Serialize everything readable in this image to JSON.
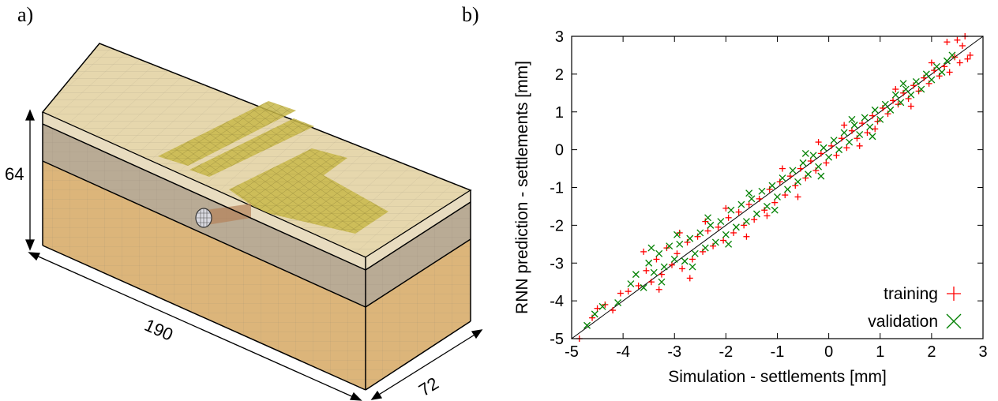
{
  "panel_labels": {
    "a": "a)",
    "b": "b)"
  },
  "model": {
    "dimensions": {
      "height": "64",
      "length": "190",
      "width": "72"
    },
    "colors": {
      "top_layer": "#e8dcc0",
      "middle_layer": "#b9ab95",
      "bottom_layer": "#dcb57a",
      "top_face": "#e6d7ad",
      "structure": "#c8b94a",
      "mesh_line": "#8f8573",
      "tunnel": "#6a6a7a"
    }
  },
  "chart_data": {
    "type": "scatter",
    "xlabel": "Simulation - settlements [mm]",
    "ylabel": "RNN prediction - settlements [mm]",
    "xlim": [
      -5,
      3
    ],
    "ylim": [
      -5,
      3
    ],
    "xticks": [
      "-5",
      "-4",
      "-3",
      "-2",
      "-1",
      "0",
      "1",
      "2",
      "3"
    ],
    "yticks": [
      "-5",
      "-4",
      "-3",
      "-2",
      "-1",
      "0",
      "1",
      "2",
      "3"
    ],
    "grid": false,
    "legend_position": "bottom-right",
    "reference_line": {
      "from": [
        -5,
        -5
      ],
      "to": [
        3,
        3
      ]
    },
    "series": [
      {
        "name": "training",
        "marker": "plus",
        "color": "#ff0000",
        "points": [
          [
            -4.85,
            -5.0
          ],
          [
            -4.6,
            -4.45
          ],
          [
            -4.5,
            -4.2
          ],
          [
            -4.35,
            -4.1
          ],
          [
            -4.2,
            -4.25
          ],
          [
            -4.05,
            -3.8
          ],
          [
            -3.9,
            -3.75
          ],
          [
            -3.7,
            -3.6
          ],
          [
            -3.55,
            -3.2
          ],
          [
            -3.45,
            -3.5
          ],
          [
            -3.35,
            -2.9
          ],
          [
            -3.25,
            -3.3
          ],
          [
            -3.15,
            -2.6
          ],
          [
            -3.05,
            -3.05
          ],
          [
            -2.95,
            -2.75
          ],
          [
            -2.85,
            -3.15
          ],
          [
            -2.75,
            -2.45
          ],
          [
            -2.65,
            -2.9
          ],
          [
            -2.55,
            -2.3
          ],
          [
            -2.45,
            -2.7
          ],
          [
            -2.35,
            -2.15
          ],
          [
            -2.25,
            -2.55
          ],
          [
            -2.15,
            -2.05
          ],
          [
            -2.05,
            -2.4
          ],
          [
            -1.95,
            -1.8
          ],
          [
            -1.85,
            -2.2
          ],
          [
            -1.75,
            -1.65
          ],
          [
            -1.65,
            -2.0
          ],
          [
            -1.55,
            -1.45
          ],
          [
            -1.45,
            -1.85
          ],
          [
            -1.35,
            -1.3
          ],
          [
            -1.25,
            -1.6
          ],
          [
            -1.15,
            -1.05
          ],
          [
            -1.05,
            -1.4
          ],
          [
            -0.95,
            -0.85
          ],
          [
            -0.85,
            -1.2
          ],
          [
            -0.75,
            -0.7
          ],
          [
            -0.65,
            -0.95
          ],
          [
            -0.55,
            -0.5
          ],
          [
            -0.45,
            -0.75
          ],
          [
            -0.35,
            -0.3
          ],
          [
            -0.25,
            -0.55
          ],
          [
            -0.15,
            -0.1
          ],
          [
            -0.05,
            -0.35
          ],
          [
            0.05,
            0.1
          ],
          [
            0.15,
            -0.15
          ],
          [
            0.25,
            0.3
          ],
          [
            0.35,
            0.05
          ],
          [
            0.45,
            0.5
          ],
          [
            0.55,
            0.3
          ],
          [
            0.65,
            0.7
          ],
          [
            0.75,
            0.45
          ],
          [
            0.85,
            0.9
          ],
          [
            0.95,
            0.75
          ],
          [
            1.05,
            1.1
          ],
          [
            1.15,
            0.95
          ],
          [
            1.25,
            1.3
          ],
          [
            1.35,
            1.2
          ],
          [
            1.45,
            1.5
          ],
          [
            1.55,
            1.35
          ],
          [
            1.65,
            1.7
          ],
          [
            1.75,
            1.55
          ],
          [
            1.85,
            1.9
          ],
          [
            1.95,
            1.75
          ],
          [
            2.05,
            2.1
          ],
          [
            2.15,
            1.95
          ],
          [
            2.25,
            2.2
          ],
          [
            2.35,
            2.05
          ],
          [
            2.45,
            2.45
          ],
          [
            2.55,
            2.3
          ],
          [
            2.6,
            2.75
          ],
          [
            2.65,
            3.0
          ],
          [
            2.7,
            2.4
          ],
          [
            2.75,
            2.5
          ],
          [
            2.3,
            2.85
          ],
          [
            2.5,
            2.9
          ],
          [
            -2.9,
            -2.2
          ],
          [
            -2.7,
            -3.4
          ],
          [
            -2.0,
            -1.55
          ],
          [
            -1.6,
            -2.3
          ],
          [
            -0.9,
            -0.5
          ],
          [
            -0.6,
            -1.25
          ],
          [
            0.3,
            0.65
          ],
          [
            0.6,
            0.1
          ],
          [
            1.3,
            1.6
          ],
          [
            1.6,
            1.15
          ],
          [
            -3.6,
            -2.7
          ],
          [
            -3.3,
            -3.7
          ],
          [
            -2.4,
            -1.9
          ],
          [
            -1.2,
            -1.75
          ],
          [
            -0.2,
            0.2
          ],
          [
            0.9,
            0.55
          ],
          [
            2.0,
            2.3
          ]
        ]
      },
      {
        "name": "validation",
        "marker": "cross",
        "color": "#008000",
        "points": [
          [
            -4.7,
            -4.65
          ],
          [
            -4.4,
            -4.15
          ],
          [
            -4.1,
            -4.05
          ],
          [
            -3.85,
            -3.55
          ],
          [
            -3.6,
            -3.65
          ],
          [
            -3.5,
            -3.0
          ],
          [
            -3.4,
            -3.25
          ],
          [
            -3.3,
            -2.75
          ],
          [
            -3.2,
            -3.1
          ],
          [
            -3.1,
            -2.55
          ],
          [
            -3.0,
            -2.9
          ],
          [
            -2.9,
            -2.5
          ],
          [
            -2.8,
            -2.95
          ],
          [
            -2.7,
            -2.35
          ],
          [
            -2.6,
            -2.75
          ],
          [
            -2.5,
            -2.2
          ],
          [
            -2.4,
            -2.6
          ],
          [
            -2.3,
            -2.0
          ],
          [
            -2.2,
            -2.45
          ],
          [
            -2.1,
            -1.9
          ],
          [
            -2.0,
            -2.25
          ],
          [
            -1.9,
            -1.6
          ],
          [
            -1.8,
            -2.05
          ],
          [
            -1.7,
            -1.45
          ],
          [
            -1.6,
            -1.9
          ],
          [
            -1.5,
            -1.3
          ],
          [
            -1.4,
            -1.7
          ],
          [
            -1.3,
            -1.1
          ],
          [
            -1.2,
            -1.5
          ],
          [
            -1.1,
            -0.95
          ],
          [
            -1.0,
            -1.25
          ],
          [
            -0.9,
            -0.75
          ],
          [
            -0.8,
            -1.05
          ],
          [
            -0.7,
            -0.55
          ],
          [
            -0.6,
            -0.85
          ],
          [
            -0.5,
            -0.35
          ],
          [
            -0.4,
            -0.65
          ],
          [
            -0.3,
            -0.15
          ],
          [
            -0.2,
            -0.45
          ],
          [
            -0.1,
            0.05
          ],
          [
            0.0,
            -0.2
          ],
          [
            0.1,
            0.25
          ],
          [
            0.2,
            0.0
          ],
          [
            0.3,
            0.45
          ],
          [
            0.4,
            0.2
          ],
          [
            0.5,
            0.65
          ],
          [
            0.6,
            0.4
          ],
          [
            0.7,
            0.85
          ],
          [
            0.8,
            0.6
          ],
          [
            0.9,
            1.05
          ],
          [
            1.0,
            0.8
          ],
          [
            1.1,
            1.2
          ],
          [
            1.2,
            1.05
          ],
          [
            1.3,
            1.45
          ],
          [
            1.4,
            1.25
          ],
          [
            1.5,
            1.6
          ],
          [
            1.6,
            1.45
          ],
          [
            1.7,
            1.8
          ],
          [
            1.8,
            1.6
          ],
          [
            1.9,
            2.0
          ],
          [
            2.0,
            1.85
          ],
          [
            2.1,
            2.2
          ],
          [
            2.2,
            2.05
          ],
          [
            2.3,
            2.35
          ],
          [
            2.4,
            2.5
          ],
          [
            -3.45,
            -2.6
          ],
          [
            -3.25,
            -3.5
          ],
          [
            -2.95,
            -2.25
          ],
          [
            -2.65,
            -3.1
          ],
          [
            -2.35,
            -1.8
          ],
          [
            -1.95,
            -2.5
          ],
          [
            -1.55,
            -1.15
          ],
          [
            -1.05,
            -1.6
          ],
          [
            -0.45,
            -0.1
          ],
          [
            -0.15,
            -0.7
          ],
          [
            0.45,
            0.8
          ],
          [
            0.85,
            0.35
          ],
          [
            1.45,
            1.75
          ],
          [
            -4.55,
            -4.35
          ],
          [
            -3.75,
            -3.3
          ]
        ]
      }
    ]
  }
}
